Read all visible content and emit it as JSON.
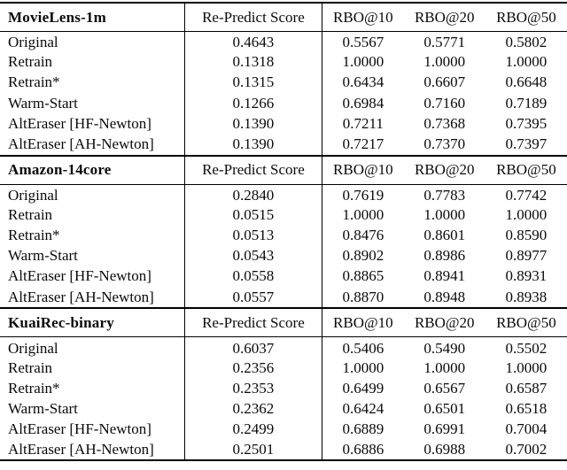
{
  "table": {
    "sections": [
      {
        "title": "MovieLens-1m",
        "columns": [
          "Re-Predict Score",
          "RBO@10",
          "RBO@20",
          "RBO@50"
        ],
        "rows": [
          {
            "label": "Original",
            "values": [
              "0.4643",
              "0.5567",
              "0.5771",
              "0.5802"
            ]
          },
          {
            "label": "Retrain",
            "values": [
              "0.1318",
              "1.0000",
              "1.0000",
              "1.0000"
            ]
          },
          {
            "label": "Retrain*",
            "values": [
              "0.1315",
              "0.6434",
              "0.6607",
              "0.6648"
            ]
          },
          {
            "label": "Warm-Start",
            "values": [
              "0.1266",
              "0.6984",
              "0.7160",
              "0.7189"
            ]
          },
          {
            "label": "AltEraser [HF-Newton]",
            "values": [
              "0.1390",
              "0.7211",
              "0.7368",
              "0.7395"
            ]
          },
          {
            "label": "AltEraser [AH-Newton]",
            "values": [
              "0.1390",
              "0.7217",
              "0.7370",
              "0.7397"
            ]
          }
        ]
      },
      {
        "title": "Amazon-14core",
        "columns": [
          "Re-Predict Score",
          "RBO@10",
          "RBO@20",
          "RBO@50"
        ],
        "rows": [
          {
            "label": "Original",
            "values": [
              "0.2840",
              "0.7619",
              "0.7783",
              "0.7742"
            ]
          },
          {
            "label": "Retrain",
            "values": [
              "0.0515",
              "1.0000",
              "1.0000",
              "1.0000"
            ]
          },
          {
            "label": "Retrain*",
            "values": [
              "0.0513",
              "0.8476",
              "0.8601",
              "0.8590"
            ]
          },
          {
            "label": "Warm-Start",
            "values": [
              "0.0543",
              "0.8902",
              "0.8986",
              "0.8977"
            ]
          },
          {
            "label": "AltEraser [HF-Newton]",
            "values": [
              "0.0558",
              "0.8865",
              "0.8941",
              "0.8931"
            ]
          },
          {
            "label": "AltEraser [AH-Newton]",
            "values": [
              "0.0557",
              "0.8870",
              "0.8948",
              "0.8938"
            ]
          }
        ]
      },
      {
        "title": "KuaiRec-binary",
        "columns": [
          "Re-Predict Score",
          "RBO@10",
          "RBO@20",
          "RBO@50"
        ],
        "rows": [
          {
            "label": "Original",
            "values": [
              "0.6037",
              "0.5406",
              "0.5490",
              "0.5502"
            ]
          },
          {
            "label": "Retrain",
            "values": [
              "0.2356",
              "1.0000",
              "1.0000",
              "1.0000"
            ]
          },
          {
            "label": "Retrain*",
            "values": [
              "0.2353",
              "0.6499",
              "0.6567",
              "0.6587"
            ]
          },
          {
            "label": "Warm-Start",
            "values": [
              "0.2362",
              "0.6424",
              "0.6501",
              "0.6518"
            ]
          },
          {
            "label": "AltEraser [HF-Newton]",
            "values": [
              "0.2499",
              "0.6889",
              "0.6991",
              "0.7004"
            ]
          },
          {
            "label": "AltEraser [AH-Newton]",
            "values": [
              "0.2501",
              "0.6886",
              "0.6988",
              "0.7002"
            ]
          }
        ]
      }
    ]
  }
}
